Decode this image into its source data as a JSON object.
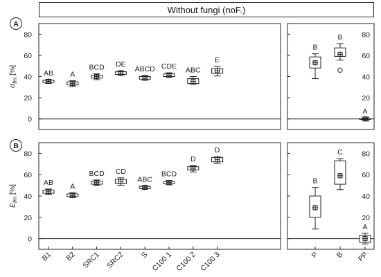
{
  "header": {
    "title": "Without fungi (noF.)"
  },
  "chart_data": [
    {
      "type": "box",
      "panel_letter": "A",
      "ylabel_main": "σ",
      "ylabel_sub": "fm",
      "ylabel_unit": "[%]",
      "ylim": [
        -10,
        90
      ],
      "yticks": [
        0,
        20,
        40,
        60,
        80
      ],
      "categories": [
        "B1",
        "B2",
        "SRC1",
        "SRC2",
        "S",
        "C100 1",
        "C100 2",
        "C100 3"
      ],
      "boxes": [
        {
          "category": "B1",
          "group": "AB",
          "mean": 35.5,
          "q1": 34.5,
          "q3": 36.5,
          "min": 33.5,
          "max": 37,
          "outliers": []
        },
        {
          "category": "B2",
          "group": "A",
          "mean": 33.5,
          "q1": 32,
          "q3": 35,
          "min": 30.5,
          "max": 36,
          "outliers": []
        },
        {
          "category": "SRC1",
          "group": "BCD",
          "mean": 40,
          "q1": 38.5,
          "q3": 41,
          "min": 37,
          "max": 42.5,
          "outliers": []
        },
        {
          "category": "SRC2",
          "group": "DE",
          "mean": 43,
          "q1": 42,
          "q3": 44.5,
          "min": 41,
          "max": 45.5,
          "outliers": []
        },
        {
          "category": "S",
          "group": "ABCD",
          "mean": 38.5,
          "q1": 37.5,
          "q3": 40,
          "min": 36.5,
          "max": 41,
          "outliers": []
        },
        {
          "category": "C100 1",
          "group": "CDE",
          "mean": 41,
          "q1": 40,
          "q3": 42.5,
          "min": 39,
          "max": 43.5,
          "outliers": []
        },
        {
          "category": "C100 2",
          "group": "ABC",
          "mean": 35.5,
          "q1": 33.5,
          "q3": 38,
          "min": 32.5,
          "max": 40,
          "outliers": []
        },
        {
          "category": "C100 3",
          "group": "E",
          "mean": 45.5,
          "q1": 43,
          "q3": 47.5,
          "min": 40.5,
          "max": 49.5,
          "outliers": []
        }
      ],
      "side_categories": [
        "P",
        "B",
        "PP"
      ],
      "side_boxes": [
        {
          "category": "P",
          "group": "B",
          "mean": 53,
          "q1": 48,
          "q3": 58.5,
          "min": 38,
          "max": 61.5,
          "outliers": []
        },
        {
          "category": "B",
          "group": "B",
          "mean": 61,
          "q1": 59,
          "q3": 67,
          "min": 55.5,
          "max": 71,
          "outliers": [
            46
          ]
        },
        {
          "category": "PP",
          "group": "A",
          "mean": 0,
          "q1": -0.5,
          "q3": 0.5,
          "min": -1,
          "max": 1,
          "outliers": []
        }
      ]
    },
    {
      "type": "box",
      "panel_letter": "B",
      "ylabel_main": "E",
      "ylabel_sub": "fm",
      "ylabel_unit": "[%]",
      "ylim": [
        -10,
        90
      ],
      "yticks": [
        0,
        20,
        40,
        60,
        80
      ],
      "categories": [
        "B1",
        "B2",
        "SRC1",
        "SRC2",
        "S",
        "C100 1",
        "C100 2",
        "C100 3"
      ],
      "boxes": [
        {
          "category": "B1",
          "group": "AB",
          "mean": 44,
          "q1": 42.5,
          "q3": 45.5,
          "min": 41.5,
          "max": 46.5,
          "outliers": []
        },
        {
          "category": "B2",
          "group": "A",
          "mean": 40.5,
          "q1": 39.5,
          "q3": 42,
          "min": 38.5,
          "max": 43,
          "outliers": []
        },
        {
          "category": "SRC1",
          "group": "BCD",
          "mean": 52.5,
          "q1": 51,
          "q3": 54,
          "min": 50,
          "max": 55,
          "outliers": []
        },
        {
          "category": "SRC2",
          "group": "CD",
          "mean": 53.5,
          "q1": 51.5,
          "q3": 55.5,
          "min": 50,
          "max": 57,
          "outliers": []
        },
        {
          "category": "S",
          "group": "ABC",
          "mean": 48,
          "q1": 47,
          "q3": 49,
          "min": 46.5,
          "max": 49.5,
          "outliers": []
        },
        {
          "category": "C100 1",
          "group": "BCD",
          "mean": 52.5,
          "q1": 51.5,
          "q3": 53.5,
          "min": 50.5,
          "max": 54.5,
          "outliers": []
        },
        {
          "category": "C100 2",
          "group": "D",
          "mean": 66,
          "q1": 64.5,
          "q3": 67.5,
          "min": 62.5,
          "max": 68.5,
          "outliers": []
        },
        {
          "category": "C100 3",
          "group": "D",
          "mean": 74,
          "q1": 72,
          "q3": 76,
          "min": 70.5,
          "max": 77,
          "outliers": []
        }
      ],
      "side_categories": [
        "P",
        "B",
        "PP"
      ],
      "side_boxes": [
        {
          "category": "P",
          "group": "B",
          "mean": 29,
          "q1": 20,
          "q3": 40,
          "min": 9,
          "max": 48,
          "outliers": []
        },
        {
          "category": "B",
          "group": "C",
          "mean": 59,
          "q1": 51,
          "q3": 73,
          "min": 46,
          "max": 75,
          "outliers": []
        },
        {
          "category": "PP",
          "group": "A",
          "mean": 0,
          "q1": -3.5,
          "q3": 3,
          "min": -5,
          "max": 5,
          "outliers": []
        }
      ]
    }
  ]
}
